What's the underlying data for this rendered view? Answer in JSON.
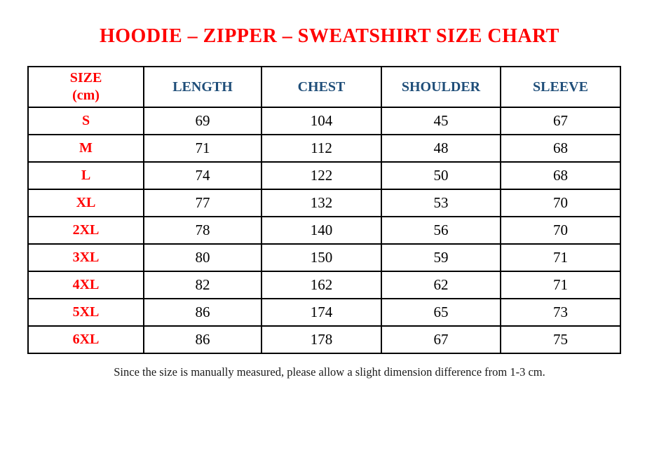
{
  "meta": {
    "stray_mark": "."
  },
  "title": "HOODIE – ZIPPER – SWEATSHIRT SIZE CHART",
  "table": {
    "header": {
      "size_label_line1": "SIZE",
      "size_label_line2": "(cm)",
      "columns": [
        "LENGTH",
        "CHEST",
        "SHOULDER",
        "SLEEVE"
      ]
    },
    "rows": [
      {
        "size": "S",
        "values": [
          "69",
          "104",
          "45",
          "67"
        ]
      },
      {
        "size": "M",
        "values": [
          "71",
          "112",
          "48",
          "68"
        ]
      },
      {
        "size": "L",
        "values": [
          "74",
          "122",
          "50",
          "68"
        ]
      },
      {
        "size": "XL",
        "values": [
          "77",
          "132",
          "53",
          "70"
        ]
      },
      {
        "size": "2XL",
        "values": [
          "78",
          "140",
          "56",
          "70"
        ]
      },
      {
        "size": "3XL",
        "values": [
          "80",
          "150",
          "59",
          "71"
        ]
      },
      {
        "size": "4XL",
        "values": [
          "82",
          "162",
          "62",
          "71"
        ]
      },
      {
        "size": "5XL",
        "values": [
          "86",
          "174",
          "65",
          "73"
        ]
      },
      {
        "size": "6XL",
        "values": [
          "86",
          "178",
          "67",
          "75"
        ]
      }
    ]
  },
  "footnote": "Since the size is manually measured, please allow a slight dimension difference from 1-3 cm.",
  "colors": {
    "title_red": "#FF0000",
    "header_blue": "#1F4E79",
    "body_text": "#000000",
    "border_black": "#000000"
  }
}
